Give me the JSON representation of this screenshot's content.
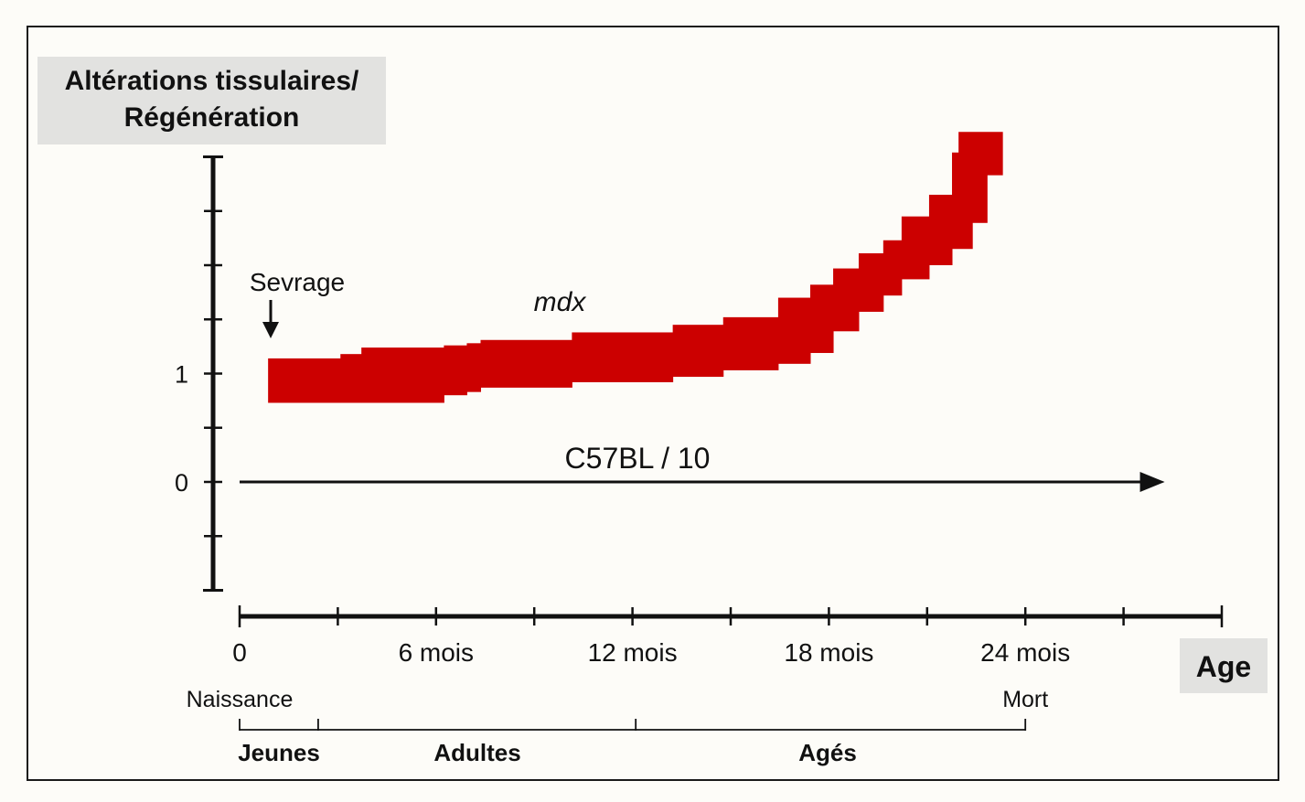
{
  "chart_data": {
    "type": "area",
    "title": "",
    "ylabel": "Altérations tissulaires/ Régénération",
    "xlabel": "Age",
    "x_unit": "mois",
    "xlim": [
      0,
      30
    ],
    "ylim": [
      -1,
      3
    ],
    "y_major_ticks": [
      {
        "value": 1,
        "label": "1"
      },
      {
        "value": 0,
        "label": "0"
      }
    ],
    "y_minor_step": 0.5,
    "x_ticks": [
      {
        "value": 0,
        "label": "0"
      },
      {
        "value": 6,
        "label": "6 mois"
      },
      {
        "value": 12,
        "label": "12 mois"
      },
      {
        "value": 18,
        "label": "18 mois"
      },
      {
        "value": 24,
        "label": "24 mois"
      }
    ],
    "x_minor_step": 3,
    "series": [
      {
        "name": "mdx",
        "style": "band",
        "color": "#cc0000",
        "segments": [
          {
            "x0": 0.87,
            "x1": 3.08,
            "low": 0.73,
            "high": 1.14
          },
          {
            "x0": 3.08,
            "x1": 3.72,
            "low": 0.73,
            "high": 1.18
          },
          {
            "x0": 3.72,
            "x1": 6.24,
            "low": 0.73,
            "high": 1.24
          },
          {
            "x0": 6.24,
            "x1": 6.94,
            "low": 0.8,
            "high": 1.26
          },
          {
            "x0": 6.94,
            "x1": 7.36,
            "low": 0.83,
            "high": 1.28
          },
          {
            "x0": 7.36,
            "x1": 10.15,
            "low": 0.87,
            "high": 1.31
          },
          {
            "x0": 10.15,
            "x1": 13.23,
            "low": 0.92,
            "high": 1.38
          },
          {
            "x0": 13.23,
            "x1": 14.77,
            "low": 0.97,
            "high": 1.45
          },
          {
            "x0": 14.77,
            "x1": 16.45,
            "low": 1.03,
            "high": 1.52
          },
          {
            "x0": 16.45,
            "x1": 17.43,
            "low": 1.09,
            "high": 1.7
          },
          {
            "x0": 17.43,
            "x1": 18.13,
            "low": 1.19,
            "high": 1.82
          },
          {
            "x0": 18.13,
            "x1": 18.91,
            "low": 1.39,
            "high": 1.97
          },
          {
            "x0": 18.91,
            "x1": 19.66,
            "low": 1.57,
            "high": 2.11
          },
          {
            "x0": 19.66,
            "x1": 20.22,
            "low": 1.72,
            "high": 2.23
          },
          {
            "x0": 20.22,
            "x1": 21.06,
            "low": 1.87,
            "high": 2.45
          },
          {
            "x0": 21.06,
            "x1": 21.76,
            "low": 2.0,
            "high": 2.65
          },
          {
            "x0": 21.76,
            "x1": 22.38,
            "low": 2.15,
            "high": 3.04
          },
          {
            "x0": 22.38,
            "x1": 22.83,
            "low": 2.39,
            "high": 3.08
          },
          {
            "x0": 21.96,
            "x1": 23.3,
            "low": 2.83,
            "high": 3.23
          }
        ]
      },
      {
        "name": "C57BL / 10",
        "style": "arrow",
        "color": "#111111",
        "x": [
          0,
          28.2
        ],
        "y": [
          0,
          0
        ]
      }
    ],
    "annotations": [
      {
        "text": "Sevrage",
        "x": 0.9,
        "arrow": "down"
      },
      {
        "text": "mdx",
        "italic": true
      },
      {
        "text": "C57BL / 10"
      }
    ],
    "x_sublabels": [
      {
        "value": 0,
        "label": "Naissance"
      },
      {
        "value": 24,
        "label": "Mort"
      }
    ],
    "age_groups": [
      {
        "label": "Jeunes",
        "from": 0,
        "to": 2.4
      },
      {
        "label": "Adultes",
        "from": 2.4,
        "to": 12.1
      },
      {
        "label": "Agés",
        "from": 12.1,
        "to": 24
      }
    ],
    "grid": false,
    "legend": "none"
  }
}
